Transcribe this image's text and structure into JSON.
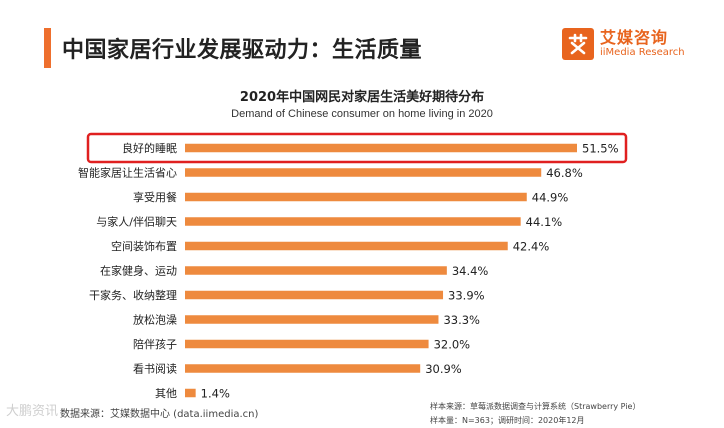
{
  "header": {
    "title": "中国家居行业发展驱动力：生活质量"
  },
  "logo": {
    "mark": "艾",
    "name_cn": "艾媒咨询",
    "name_en": "iiMedia Research"
  },
  "colors": {
    "accent": "#ee6f2d",
    "bar": "#ee8a3e",
    "highlight_border": "#e02020"
  },
  "chart_data": {
    "type": "bar",
    "orientation": "horizontal",
    "title": "2020年中国网民对家居生活美好期待分布",
    "subtitle": "Demand of Chinese consumer on home living in 2020",
    "xlim": [
      0,
      60
    ],
    "highlighted_index": 0,
    "categories": [
      "良好的睡眠",
      "智能家居让生活省心",
      "享受用餐",
      "与家人/伴侣聊天",
      "空间装饰布置",
      "在家健身、运动",
      "干家务、收纳整理",
      "放松泡澡",
      "陪伴孩子",
      "看书阅读",
      "其他"
    ],
    "values": [
      51.5,
      46.8,
      44.9,
      44.1,
      42.4,
      34.4,
      33.9,
      33.3,
      32.0,
      30.9,
      1.4
    ],
    "value_labels": [
      "51.5%",
      "46.8%",
      "44.9%",
      "44.1%",
      "42.4%",
      "34.4%",
      "33.9%",
      "33.3%",
      "32.0%",
      "30.9%",
      "1.4%"
    ]
  },
  "footer": {
    "data_source": "数据来源：艾媒数据中心 (data.iimedia.cn)",
    "sample_source": "样本来源：草莓派数据调查与计算系统（Strawberry Pie）",
    "sample_info": "样本量：N=363；调研时间：2020年12月",
    "watermark": "大鹏资讯"
  }
}
